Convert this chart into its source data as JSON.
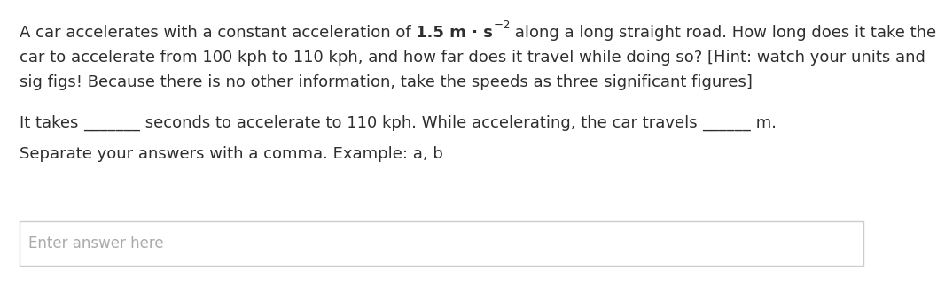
{
  "bg_color": "#ffffff",
  "text_color": "#2e2e2e",
  "light_text_color": "#aaaaaa",
  "line2": "car to accelerate from 100 kph to 110 kph, and how far does it travel while doing so? [Hint: watch your units and",
  "line3": "sig figs! Because there is no other information, take the speeds as three significant figures]",
  "line5": "Separate your answers with a comma. Example: a, b",
  "input_placeholder": "Enter answer here",
  "font_size_body": 13.0,
  "font_size_placeholder": 12.0,
  "box_color": "#ffffff",
  "box_border_color": "#cccccc",
  "line1_prefix": "A car accelerates with a constant acceleration of ",
  "line1_formula": "1.5 m · s",
  "line1_super": "−2",
  "line1_suffix": " along a long straight road. How long does it take the",
  "line4_pre": "It takes ",
  "line4_blank1": "_______",
  "line4_mid": " seconds to accelerate to 110 kph. While accelerating, the car travels ",
  "line4_blank2": "______",
  "line4_post": " m."
}
